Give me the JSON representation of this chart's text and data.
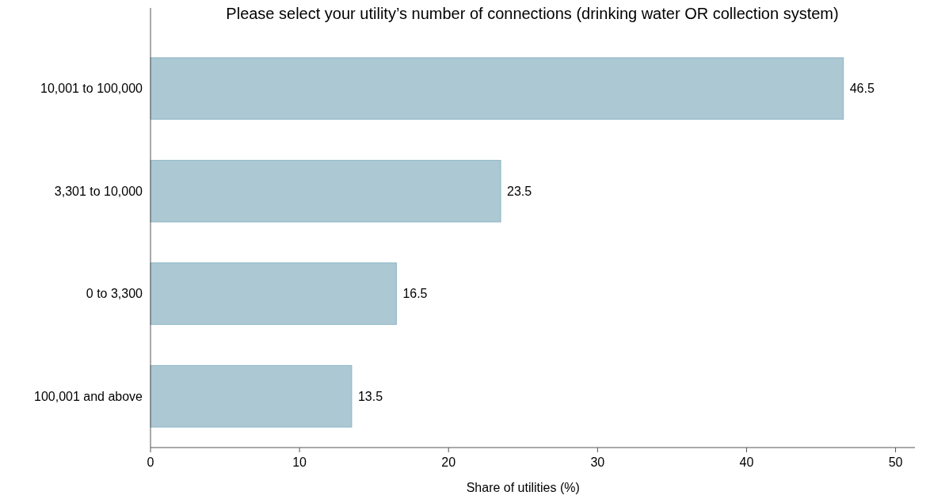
{
  "chart_data": {
    "type": "bar",
    "orientation": "horizontal",
    "title": "Please select your utility’s number of connections (drinking water OR collection system)",
    "xlabel": "Share of utilities (%)",
    "categories": [
      "10,001 to 100,000",
      "3,301 to 10,000",
      "0 to 3,300",
      "100,001 and above"
    ],
    "values": [
      46.5,
      23.5,
      16.5,
      13.5
    ],
    "color": "#abc8d3",
    "xlim": [
      0,
      51.3
    ],
    "xticks": [
      0,
      10,
      20,
      30,
      40,
      50
    ],
    "data_labels": true,
    "grid": false
  }
}
